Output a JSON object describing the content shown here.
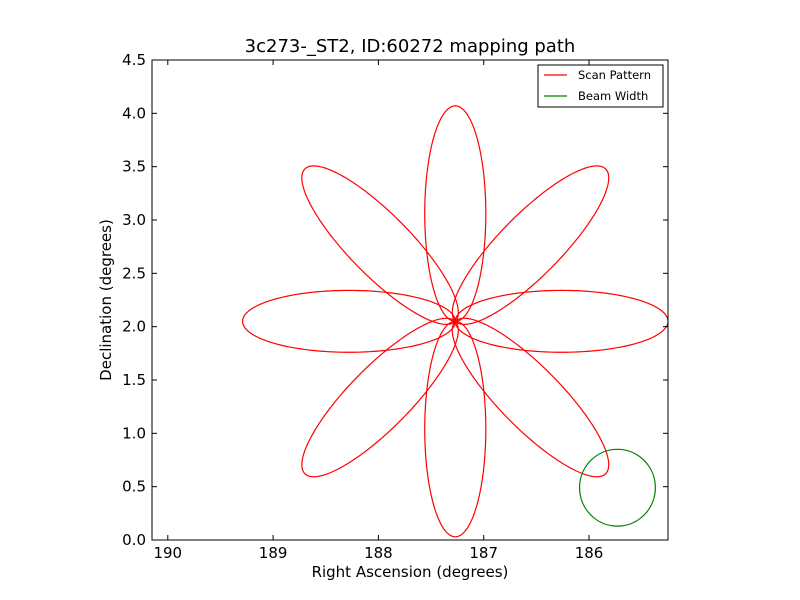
{
  "chart_data": {
    "type": "line",
    "title": "3c273-_ST2, ID:60272 mapping path",
    "xlabel": "Right Ascension (degrees)",
    "ylabel": "Declination (degrees)",
    "xlim": [
      190.15,
      185.25
    ],
    "ylim": [
      0.0,
      4.5
    ],
    "x_ticks": [
      190,
      189,
      188,
      187,
      186
    ],
    "x_tick_labels": [
      "190",
      "189",
      "188",
      "187",
      "186"
    ],
    "y_ticks": [
      0.0,
      0.5,
      1.0,
      1.5,
      2.0,
      2.5,
      3.0,
      3.5,
      4.0,
      4.5
    ],
    "y_tick_labels": [
      "0.0",
      "0.5",
      "1.0",
      "1.5",
      "2.0",
      "2.5",
      "3.0",
      "3.5",
      "4.0",
      "4.5"
    ],
    "grid": false,
    "legend_position": "top-right",
    "series": [
      {
        "name": "Scan Pattern",
        "color": "#ff0000",
        "center": [
          187.27,
          2.05
        ],
        "petal_count": 8,
        "petal_length_deg": 2.02,
        "petal_halfwidth_deg": 0.29,
        "start": [
          189.35,
          2.05
        ],
        "end": [
          189.25,
          2.0
        ]
      },
      {
        "name": "Beam Width",
        "color": "#008000",
        "center": [
          185.73,
          0.49
        ],
        "radius_deg": 0.36
      }
    ]
  }
}
